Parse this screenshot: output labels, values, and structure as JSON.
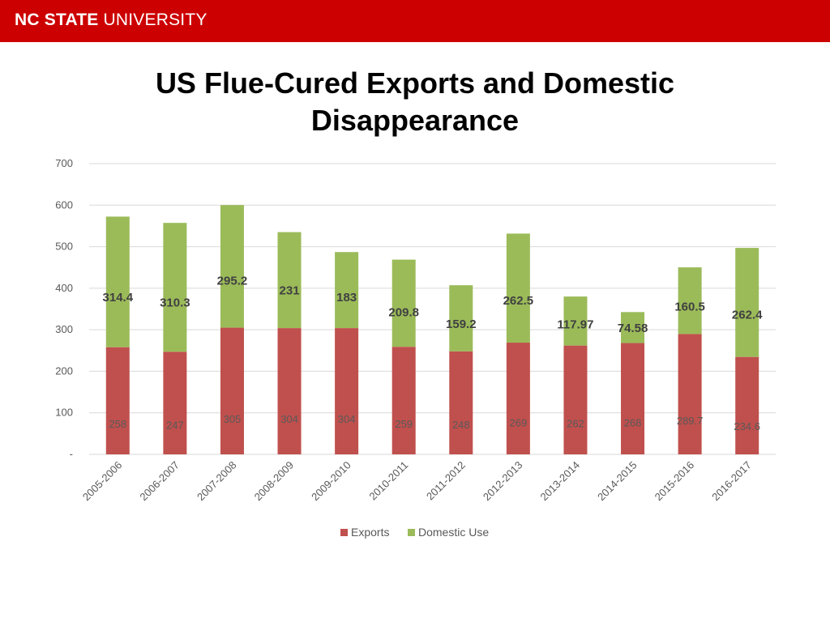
{
  "header": {
    "brand_bold": "NC STATE",
    "brand_light": "UNIVERSITY",
    "bar_color": "#cc0000"
  },
  "chart_data": {
    "type": "bar",
    "stacked": true,
    "title": "US Flue-Cured Exports and Domestic Disappearance",
    "title_lines": [
      "US Flue-Cured Exports and Domestic",
      "Disappearance"
    ],
    "categories": [
      "2005-2006",
      "2006-2007",
      "2007-2008",
      "2008-2009",
      "2009-2010",
      "2010-2011",
      "2011-2012",
      "2012-2013",
      "2013-2014",
      "2014-2015",
      "2015-2016",
      "2016-2017"
    ],
    "series": [
      {
        "name": "Exports",
        "color": "#c0504d",
        "values": [
          258,
          247,
          305,
          304,
          304,
          259,
          248,
          269,
          262,
          268,
          289.7,
          234.6
        ],
        "labels": [
          "258",
          "247",
          "305",
          "304",
          "304",
          "259",
          "248",
          "269",
          "262",
          "268",
          "289.7",
          "234.6"
        ]
      },
      {
        "name": "Domestic Use",
        "color": "#9bbb59",
        "values": [
          314.4,
          310.3,
          295.2,
          231,
          183,
          209.8,
          159.2,
          262.5,
          117.97,
          74.58,
          160.5,
          262.4
        ],
        "labels": [
          "314.4",
          "310.3",
          "295.2",
          "231",
          "183",
          "209.8",
          "159.2",
          "262.5",
          "117.97",
          "74.58",
          "160.5",
          "262.4"
        ]
      }
    ],
    "ylim": [
      0,
      700
    ],
    "yticks": [
      0,
      100,
      200,
      300,
      400,
      500,
      600,
      700
    ],
    "ytick_labels": [
      "-",
      "100",
      "200",
      "300",
      "400",
      "500",
      "600",
      "700"
    ],
    "xlabel": "",
    "ylabel": "",
    "grid": true,
    "legend_position": "bottom-center"
  }
}
